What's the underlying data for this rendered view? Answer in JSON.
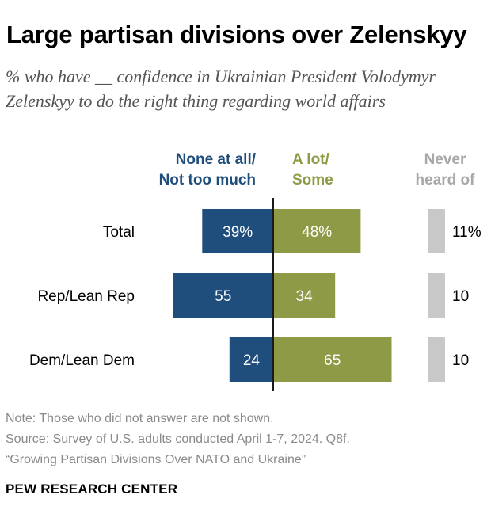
{
  "header": {
    "title": "Large partisan divisions over Zelenskyy",
    "subtitle": "% who have __ confidence in Ukrainian President Volodymyr Zelenskyy to do the right thing regarding world affairs"
  },
  "columns": {
    "none_line1": "None at all/",
    "none_line2": "Not too much",
    "alot_line1": "A lot/",
    "alot_line2": "Some",
    "never_line1": "Never",
    "never_line2": "heard of"
  },
  "chart_data": {
    "type": "bar",
    "orientation": "horizontal-diverging",
    "categories": [
      "Total",
      "Rep/Lean Rep",
      "Dem/Lean Dem"
    ],
    "series": [
      {
        "name": "None at all/Not too much",
        "values": [
          39,
          55,
          24
        ],
        "labels": [
          "39%",
          "55",
          "24"
        ],
        "color": "#1f4e7d"
      },
      {
        "name": "A lot/Some",
        "values": [
          48,
          34,
          65
        ],
        "labels": [
          "48%",
          "34",
          "65"
        ],
        "color": "#8e9a45"
      },
      {
        "name": "Never heard of",
        "values": [
          11,
          10,
          10
        ],
        "labels": [
          "11%",
          "10",
          "10"
        ],
        "color": "#c8c8c8"
      }
    ],
    "xlim": [
      0,
      100
    ]
  },
  "footer": {
    "note": "Note: Those who did not answer are not shown.",
    "source": "Source: Survey of U.S. adults conducted April 1-7, 2024. Q8f.",
    "report": "“Growing Partisan Divisions Over NATO and Ukraine”",
    "brand": "PEW RESEARCH CENTER"
  },
  "colors": {
    "negative": "#1f4e7d",
    "positive": "#8e9a45",
    "never": "#c8c8c8",
    "axis": "#1a1a1a",
    "bar_text": "#ffffff"
  }
}
